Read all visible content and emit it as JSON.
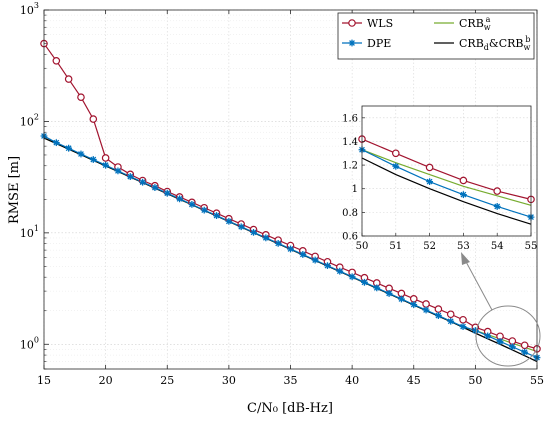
{
  "chart_data": {
    "type": "line",
    "xlabel": "C/N₀ [dB-Hz]",
    "ylabel": "RMSE [m]",
    "xlim": [
      15,
      55
    ],
    "ylim": [
      0.6,
      1000
    ],
    "yscale": "log",
    "grid": true,
    "legend_placement": "top-right",
    "x_ticks": [
      "15",
      "20",
      "25",
      "30",
      "35",
      "40",
      "45",
      "50",
      "55"
    ],
    "y_ticks": [
      {
        "value": 1,
        "base": "10",
        "exp": "0"
      },
      {
        "value": 10,
        "base": "10",
        "exp": "1"
      },
      {
        "value": 100,
        "base": "10",
        "exp": "2"
      },
      {
        "value": 1000,
        "base": "10",
        "exp": "3"
      }
    ],
    "x": [
      15,
      16,
      17,
      18,
      19,
      20,
      21,
      22,
      23,
      24,
      25,
      26,
      27,
      28,
      29,
      30,
      31,
      32,
      33,
      34,
      35,
      36,
      37,
      38,
      39,
      40,
      41,
      42,
      43,
      44,
      45,
      46,
      47,
      48,
      49,
      50,
      51,
      52,
      53,
      54,
      55
    ],
    "series": [
      {
        "name": "WLS",
        "color": "#a2142f",
        "marker": "circle",
        "values": [
          500,
          350,
          240,
          165,
          105,
          47,
          39,
          33.5,
          29.5,
          26.5,
          23.5,
          21,
          18.8,
          16.8,
          15,
          13.4,
          12,
          10.7,
          9.6,
          8.6,
          7.7,
          6.9,
          6.15,
          5.5,
          4.92,
          4.42,
          3.96,
          3.55,
          3.18,
          2.86,
          2.56,
          2.3,
          2.07,
          1.86,
          1.66,
          1.42,
          1.3,
          1.18,
          1.07,
          0.98,
          0.91
        ]
      },
      {
        "name": "DPE",
        "color": "#0072bd",
        "marker": "star",
        "values": [
          74,
          64.5,
          57.5,
          51,
          45.5,
          40.5,
          36,
          32,
          28.5,
          25.5,
          22.7,
          20.2,
          18,
          16,
          14.3,
          12.7,
          11.35,
          10.1,
          9.03,
          8.05,
          7.17,
          6.4,
          5.7,
          5.08,
          4.53,
          4.04,
          3.6,
          3.21,
          2.86,
          2.55,
          2.27,
          2.03,
          1.81,
          1.61,
          1.44,
          1.33,
          1.19,
          1.06,
          0.95,
          0.85,
          0.76
        ]
      },
      {
        "name_parts": [
          "CRB",
          "w",
          "a"
        ],
        "color": "#77ac30",
        "marker": "none",
        "values": [
          71,
          63.3,
          56.4,
          50.3,
          44.8,
          39.9,
          35.6,
          31.7,
          28.3,
          25.2,
          22.5,
          20,
          17.9,
          15.9,
          14.2,
          12.65,
          11.28,
          10.05,
          8.96,
          7.99,
          7.12,
          6.35,
          5.66,
          5.04,
          4.5,
          4.01,
          3.57,
          3.18,
          2.84,
          2.53,
          2.25,
          2.01,
          1.79,
          1.6,
          1.42,
          1.33,
          1.22,
          1.12,
          1.02,
          0.94,
          0.86
        ]
      },
      {
        "name_parts": [
          "CRB",
          "d",
          "&CRB",
          "w",
          "b"
        ],
        "color": "#000000",
        "marker": "none",
        "values": [
          71,
          63.3,
          56.4,
          50.3,
          44.8,
          39.9,
          35.6,
          31.7,
          28.3,
          25.2,
          22.5,
          20,
          17.9,
          15.9,
          14.2,
          12.65,
          11.28,
          10.05,
          8.96,
          7.99,
          7.12,
          6.35,
          5.66,
          5.04,
          4.5,
          4.01,
          3.57,
          3.18,
          2.84,
          2.53,
          2.25,
          2.01,
          1.79,
          1.6,
          1.42,
          1.26,
          1.12,
          1,
          0.89,
          0.79,
          0.7
        ]
      }
    ],
    "inset": {
      "xlim": [
        50,
        55
      ],
      "ylim": [
        0.6,
        1.7
      ],
      "x_ticks": [
        "50",
        "51",
        "52",
        "53",
        "54",
        "55"
      ],
      "y_ticks": [
        "0.6",
        "0.8",
        "1",
        "1.2",
        "1.4",
        "1.6"
      ],
      "points_per_series": 6
    }
  }
}
